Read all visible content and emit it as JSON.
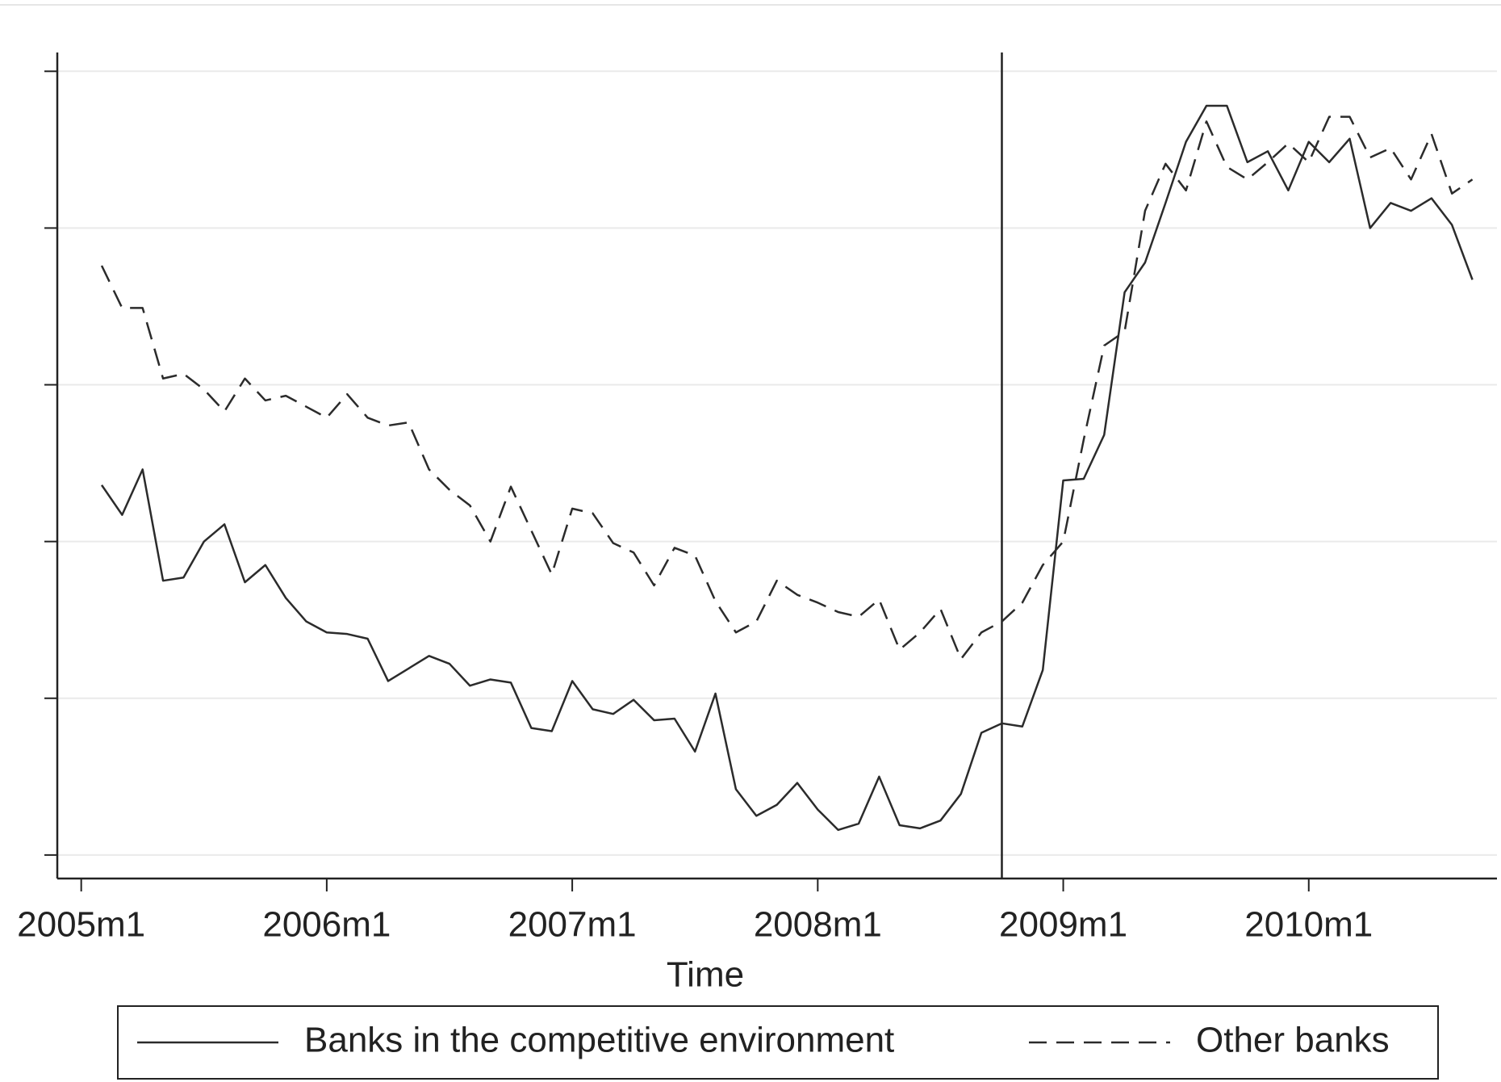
{
  "chart_data": {
    "type": "line",
    "xlabel": "Time",
    "x": [
      541,
      542,
      543,
      544,
      545,
      546,
      547,
      548,
      549,
      550,
      551,
      552,
      553,
      554,
      555,
      556,
      557,
      558,
      559,
      560,
      561,
      562,
      563,
      564,
      565,
      566,
      567,
      568,
      569,
      570,
      571,
      572,
      573,
      574,
      575,
      576,
      577,
      578,
      579,
      580,
      581,
      582,
      583,
      584,
      585,
      586,
      587,
      588,
      589,
      590,
      591,
      592,
      593,
      594,
      595,
      596,
      597,
      598,
      599,
      600,
      601,
      602,
      603,
      604,
      605,
      606,
      607,
      608
    ],
    "series": [
      {
        "name": "Banks in the competitive environment",
        "color": "#2b2b2b",
        "linestyle": "solid",
        "values": [
          2.36,
          2.17,
          2.46,
          1.75,
          1.77,
          2.0,
          2.11,
          1.74,
          1.85,
          1.64,
          1.49,
          1.42,
          1.41,
          1.38,
          1.11,
          1.19,
          1.27,
          1.22,
          1.08,
          1.12,
          1.1,
          0.81,
          0.79,
          1.11,
          0.93,
          0.9,
          0.99,
          0.86,
          0.87,
          0.66,
          1.03,
          0.42,
          0.25,
          0.32,
          0.46,
          0.29,
          0.16,
          0.2,
          0.5,
          0.19,
          0.17,
          0.22,
          0.39,
          0.78,
          0.84,
          0.82,
          1.18,
          2.39,
          2.4,
          2.68,
          3.59,
          3.78,
          4.16,
          4.55,
          4.78,
          4.78,
          4.42,
          4.49,
          4.24,
          4.55,
          4.42,
          4.57,
          4.0,
          4.16,
          4.11,
          4.19,
          4.02,
          3.67
        ]
      },
      {
        "name": "Other banks",
        "color": "#2b2b2b",
        "linestyle": "dashed",
        "values": [
          3.76,
          3.49,
          3.49,
          3.04,
          3.07,
          2.97,
          2.83,
          3.04,
          2.9,
          2.93,
          2.86,
          2.79,
          2.94,
          2.79,
          2.74,
          2.76,
          2.46,
          2.33,
          2.23,
          2.0,
          2.35,
          2.07,
          1.79,
          2.21,
          2.18,
          1.99,
          1.93,
          1.72,
          1.96,
          1.91,
          1.62,
          1.42,
          1.49,
          1.75,
          1.66,
          1.61,
          1.55,
          1.52,
          1.63,
          1.31,
          1.42,
          1.57,
          1.25,
          1.42,
          1.49,
          1.61,
          1.85,
          2.0,
          2.65,
          3.25,
          3.34,
          4.11,
          4.41,
          4.24,
          4.68,
          4.39,
          4.31,
          4.42,
          4.54,
          4.42,
          4.71,
          4.71,
          4.45,
          4.51,
          4.31,
          4.6,
          4.22,
          4.31
        ]
      }
    ],
    "xlim": [
      538.83,
      609.2
    ],
    "xticks": [
      {
        "value": 540,
        "label": "2005m1"
      },
      {
        "value": 552,
        "label": "2006m1"
      },
      {
        "value": 564,
        "label": "2007m1"
      },
      {
        "value": 576,
        "label": "2008m1"
      },
      {
        "value": 588,
        "label": "2009m1"
      },
      {
        "value": 600,
        "label": "2010m1"
      }
    ],
    "ylim": [
      -0.15,
      5.12
    ],
    "yticks": [
      0,
      1,
      2,
      3,
      4,
      5
    ],
    "ytick_labels": false,
    "grid": true,
    "xline": 585,
    "legend": "bottom"
  }
}
